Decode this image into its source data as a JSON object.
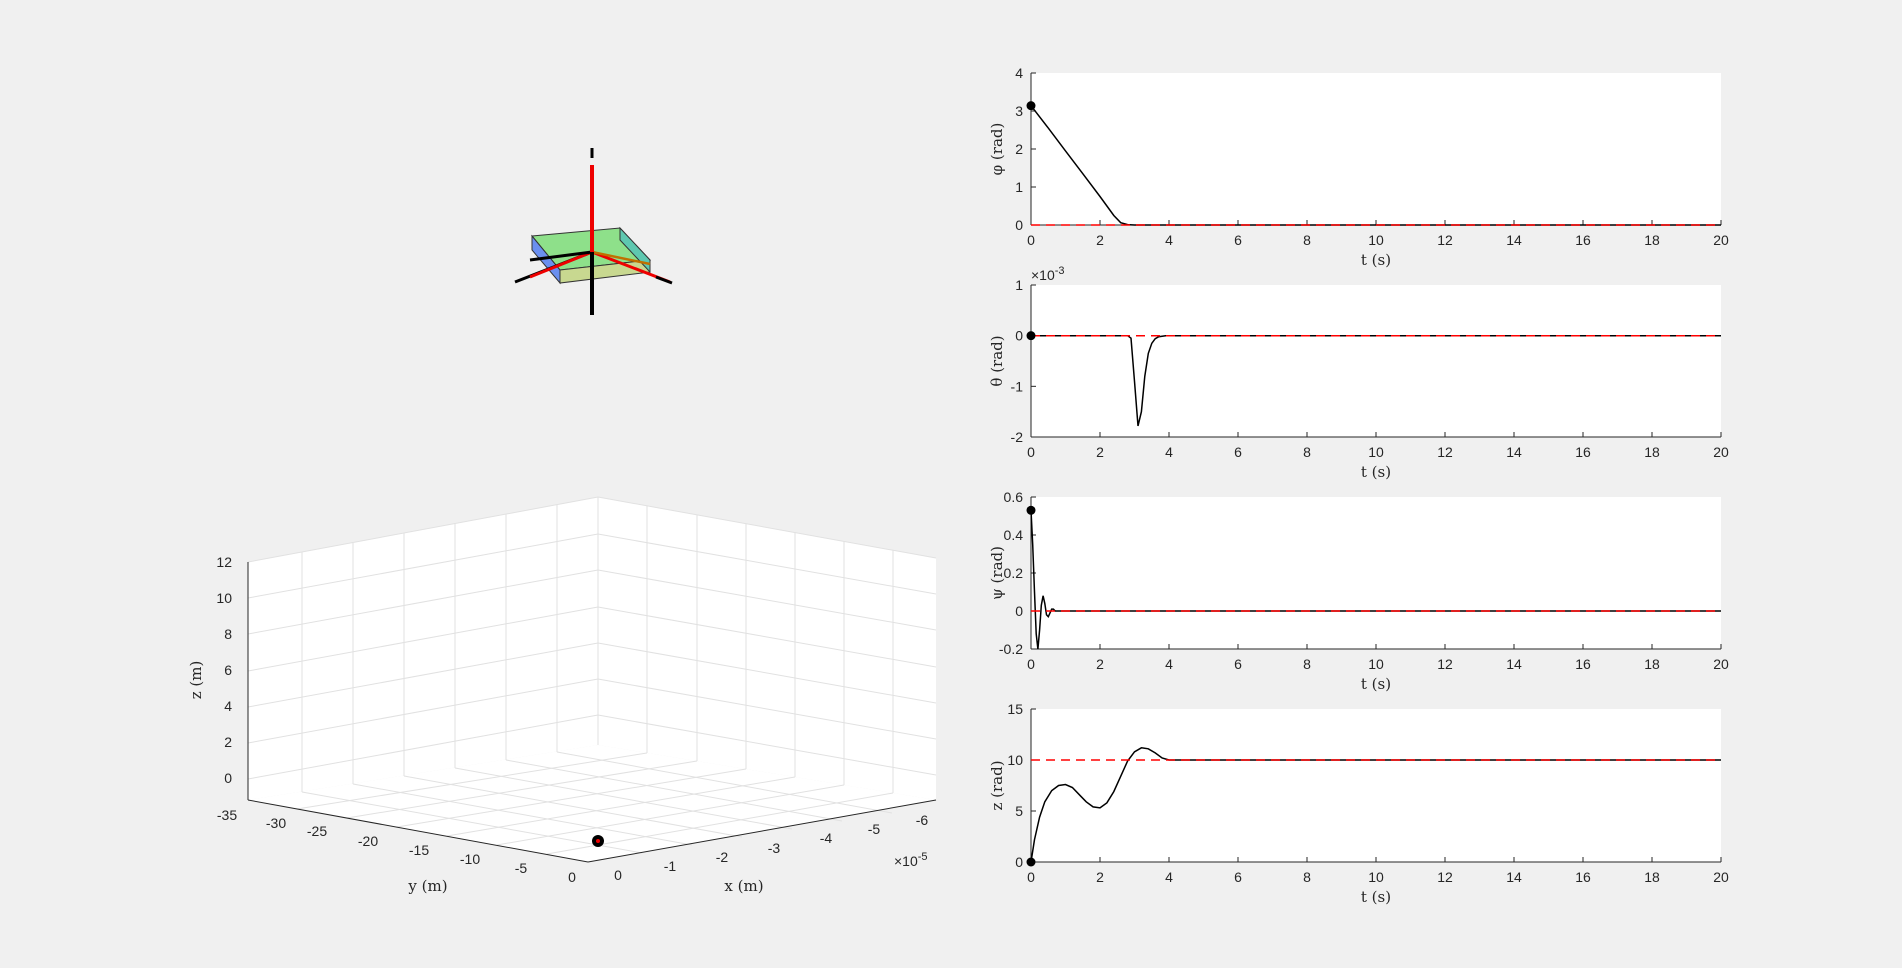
{
  "figure": {
    "background": "#f0f0f0"
  },
  "scene3d": {
    "xlabel": "x (m)",
    "ylabel": "y (m)",
    "zlabel": "z (m)",
    "x_ticks": [
      "0",
      "-1",
      "-2",
      "-3",
      "-4",
      "-5",
      "-6"
    ],
    "x_exponent": "×10",
    "x_exponent_power": "-5",
    "y_ticks": [
      "0",
      "-5",
      "-10",
      "-15",
      "-20",
      "-25",
      "-30",
      "-35"
    ],
    "z_ticks": [
      "0",
      "2",
      "4",
      "6",
      "8",
      "10",
      "12"
    ],
    "marker_position": {
      "x": 0,
      "y": 0,
      "z": 0
    }
  },
  "chart_data": [
    {
      "type": "line",
      "ylabel": "φ (rad)",
      "xlabel": "t (s)",
      "xlim": [
        0,
        20
      ],
      "ylim": [
        0,
        4
      ],
      "xticks": [
        0,
        2,
        4,
        6,
        8,
        10,
        12,
        14,
        16,
        18,
        20
      ],
      "yticks": [
        0,
        1,
        2,
        3,
        4
      ],
      "series": [
        {
          "style": "actual",
          "color": "#000000",
          "x": [
            0,
            0.5,
            1,
            1.5,
            2,
            2.4,
            2.6,
            2.8,
            3,
            4,
            20
          ],
          "y": [
            3.14,
            2.55,
            1.95,
            1.35,
            0.75,
            0.25,
            0.06,
            0.01,
            0,
            0,
            0
          ]
        },
        {
          "style": "reference",
          "color": "#ff0000",
          "x": [
            0,
            20
          ],
          "y": [
            0,
            0
          ]
        }
      ],
      "start_marker": {
        "x": 0,
        "y": 3.14
      }
    },
    {
      "type": "line",
      "ylabel": "θ (rad)",
      "xlabel": "t (s)",
      "y_exponent": "×10",
      "y_exponent_power": "-3",
      "xlim": [
        0,
        20
      ],
      "ylim": [
        -2,
        1
      ],
      "xticks": [
        0,
        2,
        4,
        6,
        8,
        10,
        12,
        14,
        16,
        18,
        20
      ],
      "yticks": [
        -2,
        -1,
        0,
        1
      ],
      "series": [
        {
          "style": "actual",
          "color": "#000000",
          "x": [
            0,
            2.8,
            2.9,
            3.0,
            3.1,
            3.2,
            3.3,
            3.4,
            3.5,
            3.6,
            3.7,
            3.8,
            3.9,
            4.0,
            20
          ],
          "y": [
            0,
            0,
            -0.05,
            -0.9,
            -1.78,
            -1.5,
            -0.8,
            -0.35,
            -0.15,
            -0.06,
            -0.02,
            -0.01,
            0,
            0,
            0
          ]
        },
        {
          "style": "reference",
          "color": "#ff0000",
          "x": [
            0,
            20
          ],
          "y": [
            0,
            0
          ]
        }
      ],
      "start_marker": {
        "x": 0,
        "y": 0
      }
    },
    {
      "type": "line",
      "ylabel": "ψ (rad)",
      "xlabel": "t (s)",
      "xlim": [
        0,
        20
      ],
      "ylim": [
        -0.2,
        0.6
      ],
      "xticks": [
        0,
        2,
        4,
        6,
        8,
        10,
        12,
        14,
        16,
        18,
        20
      ],
      "yticks": [
        -0.2,
        0,
        0.2,
        0.4,
        0.6
      ],
      "series": [
        {
          "style": "actual",
          "color": "#000000",
          "x": [
            0,
            0.05,
            0.1,
            0.15,
            0.2,
            0.25,
            0.3,
            0.35,
            0.4,
            0.45,
            0.5,
            0.55,
            0.6,
            0.65,
            0.7,
            0.75,
            0.8,
            0.9,
            1.0,
            20
          ],
          "y": [
            0.53,
            0.35,
            0.1,
            -0.12,
            -0.2,
            -0.1,
            0.03,
            0.08,
            0.04,
            -0.02,
            -0.03,
            -0.01,
            0.01,
            0.01,
            0,
            0,
            0,
            0,
            0,
            0
          ]
        },
        {
          "style": "reference",
          "color": "#ff0000",
          "x": [
            0,
            20
          ],
          "y": [
            0,
            0
          ]
        }
      ],
      "start_marker": {
        "x": 0,
        "y": 0.53
      }
    },
    {
      "type": "line",
      "ylabel": "z (rad)",
      "xlabel": "t (s)",
      "xlim": [
        0,
        20
      ],
      "ylim": [
        0,
        15
      ],
      "xticks": [
        0,
        2,
        4,
        6,
        8,
        10,
        12,
        14,
        16,
        18,
        20
      ],
      "yticks": [
        0,
        5,
        10,
        15
      ],
      "series": [
        {
          "style": "actual",
          "color": "#000000",
          "x": [
            0,
            0.1,
            0.25,
            0.4,
            0.6,
            0.8,
            1.0,
            1.2,
            1.4,
            1.6,
            1.8,
            2.0,
            2.2,
            2.4,
            2.6,
            2.8,
            3.0,
            3.2,
            3.4,
            3.6,
            3.8,
            4.0,
            20
          ],
          "y": [
            0,
            2.2,
            4.4,
            5.9,
            7.0,
            7.5,
            7.6,
            7.3,
            6.6,
            5.9,
            5.4,
            5.3,
            5.8,
            6.9,
            8.4,
            9.9,
            10.8,
            11.2,
            11.1,
            10.7,
            10.2,
            10.0,
            10.0
          ]
        },
        {
          "style": "reference",
          "color": "#ff0000",
          "x": [
            0,
            20
          ],
          "y": [
            10,
            10
          ]
        }
      ],
      "start_marker": {
        "x": 0,
        "y": 0
      }
    }
  ]
}
